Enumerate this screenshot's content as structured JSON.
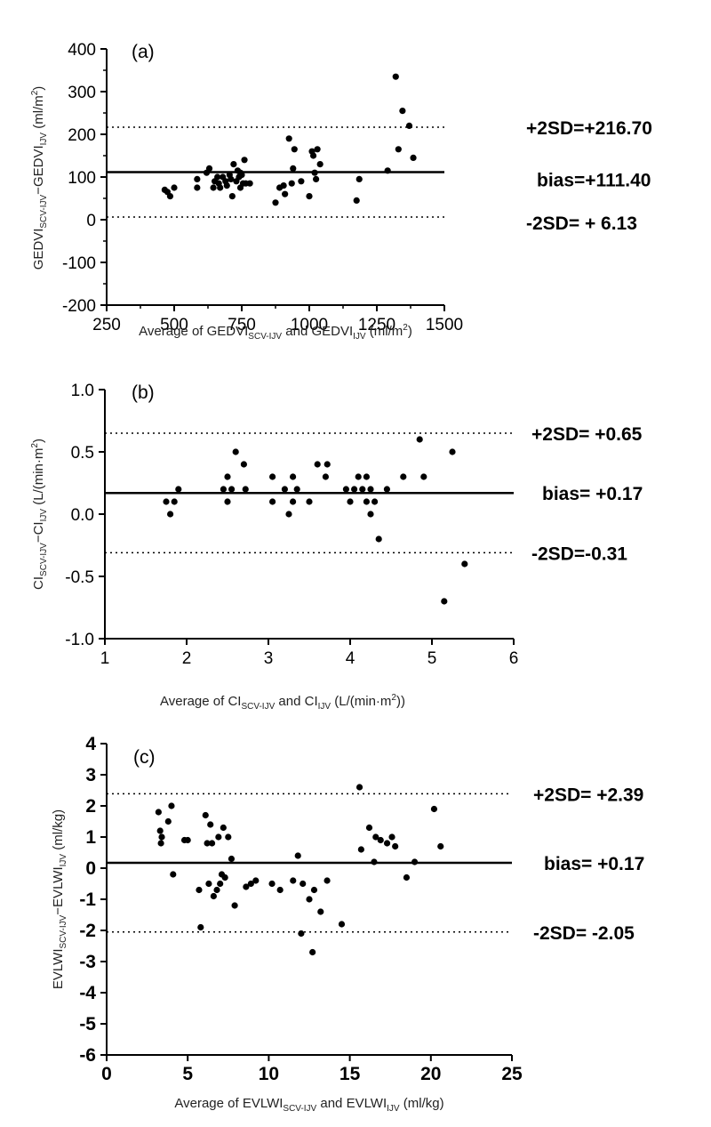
{
  "chart_data": [
    {
      "type": "scatter",
      "panel_label": "(a)",
      "xlabel": {
        "pre": "Average of GEDVI",
        "sub1": "SCV-IJV",
        "mid": " and GEDVI",
        "sub2": "IJV",
        "post": " (ml/m",
        "sup": "2",
        "end": ")"
      },
      "ylabel": {
        "pre": "GEDVI",
        "sub1": "SCV-IJV",
        "mid": "−GEDVI",
        "sub2": "IJV",
        "post": " (ml/m",
        "sup": "2",
        "end": ")"
      },
      "xlim": [
        250,
        1500
      ],
      "ylim": [
        -200,
        400
      ],
      "xticks": [
        250,
        500,
        750,
        1000,
        1250,
        1500
      ],
      "yticks": [
        -200,
        -100,
        0,
        100,
        200,
        300,
        400
      ],
      "lines": {
        "upper": {
          "value": 216.7,
          "label": "+2SD=+216.70"
        },
        "bias": {
          "value": 111.4,
          "label": "bias=+111.40"
        },
        "lower": {
          "value": 6.13,
          "label": "-2SD= + 6.13"
        }
      },
      "points": [
        [
          465,
          70
        ],
        [
          475,
          65
        ],
        [
          485,
          55
        ],
        [
          500,
          75
        ],
        [
          585,
          95
        ],
        [
          585,
          75
        ],
        [
          620,
          110
        ],
        [
          630,
          120
        ],
        [
          645,
          75
        ],
        [
          650,
          90
        ],
        [
          660,
          100
        ],
        [
          665,
          85
        ],
        [
          670,
          75
        ],
        [
          680,
          100
        ],
        [
          690,
          90
        ],
        [
          695,
          80
        ],
        [
          705,
          105
        ],
        [
          710,
          95
        ],
        [
          715,
          55
        ],
        [
          720,
          130
        ],
        [
          730,
          90
        ],
        [
          735,
          115
        ],
        [
          740,
          100
        ],
        [
          745,
          110
        ],
        [
          745,
          75
        ],
        [
          750,
          105
        ],
        [
          755,
          85
        ],
        [
          760,
          140
        ],
        [
          765,
          85
        ],
        [
          780,
          85
        ],
        [
          875,
          40
        ],
        [
          890,
          75
        ],
        [
          905,
          80
        ],
        [
          910,
          60
        ],
        [
          925,
          190
        ],
        [
          935,
          85
        ],
        [
          940,
          120
        ],
        [
          945,
          165
        ],
        [
          970,
          90
        ],
        [
          1000,
          55
        ],
        [
          1010,
          160
        ],
        [
          1015,
          150
        ],
        [
          1020,
          110
        ],
        [
          1025,
          95
        ],
        [
          1030,
          165
        ],
        [
          1040,
          130
        ],
        [
          1175,
          45
        ],
        [
          1185,
          95
        ],
        [
          1290,
          115
        ],
        [
          1320,
          335
        ],
        [
          1330,
          165
        ],
        [
          1345,
          255
        ],
        [
          1370,
          220
        ],
        [
          1385,
          145
        ]
      ]
    },
    {
      "type": "scatter",
      "panel_label": "(b)",
      "xlabel": {
        "pre": "Average of CI",
        "sub1": "SCV-IJV",
        "mid": " and CI",
        "sub2": "IJV",
        "post": " (L/(min·m",
        "sup": "2",
        "end": "))"
      },
      "ylabel": {
        "pre": "CI",
        "sub1": "SCV-IJV",
        "mid": "−CI",
        "sub2": "IJV",
        "post": " (L/(min·m",
        "sup": "2",
        "end": ")"
      },
      "xlim": [
        1,
        6
      ],
      "ylim": [
        -1.0,
        1.0
      ],
      "xticks": [
        1,
        2,
        3,
        4,
        5,
        6
      ],
      "yticks": [
        -1.0,
        -0.5,
        0.0,
        0.5,
        1.0
      ],
      "ytick_labels": [
        "-1.0",
        "-0.5",
        "0.0",
        "0.5",
        "1.0"
      ],
      "lines": {
        "upper": {
          "value": 0.65,
          "label": "+2SD= +0.65"
        },
        "bias": {
          "value": 0.17,
          "label": "bias= +0.17"
        },
        "lower": {
          "value": -0.31,
          "label": "-2SD=-0.31"
        }
      },
      "points": [
        [
          1.75,
          0.1
        ],
        [
          1.8,
          0.0
        ],
        [
          1.85,
          0.1
        ],
        [
          1.9,
          0.2
        ],
        [
          2.45,
          0.2
        ],
        [
          2.5,
          0.3
        ],
        [
          2.5,
          0.1
        ],
        [
          2.55,
          0.2
        ],
        [
          2.6,
          0.5
        ],
        [
          2.7,
          0.4
        ],
        [
          2.72,
          0.2
        ],
        [
          3.05,
          0.3
        ],
        [
          3.05,
          0.1
        ],
        [
          3.2,
          0.2
        ],
        [
          3.25,
          0.0
        ],
        [
          3.3,
          0.3
        ],
        [
          3.3,
          0.1
        ],
        [
          3.35,
          0.2
        ],
        [
          3.5,
          0.1
        ],
        [
          3.6,
          0.4
        ],
        [
          3.7,
          0.3
        ],
        [
          3.72,
          0.4
        ],
        [
          3.95,
          0.2
        ],
        [
          4.0,
          0.1
        ],
        [
          4.05,
          0.2
        ],
        [
          4.1,
          0.3
        ],
        [
          4.15,
          0.2
        ],
        [
          4.2,
          0.3
        ],
        [
          4.2,
          0.1
        ],
        [
          4.25,
          0.2
        ],
        [
          4.25,
          0.0
        ],
        [
          4.3,
          0.1
        ],
        [
          4.35,
          -0.2
        ],
        [
          4.45,
          0.2
        ],
        [
          4.65,
          0.3
        ],
        [
          4.85,
          0.6
        ],
        [
          4.9,
          0.3
        ],
        [
          5.15,
          -0.7
        ],
        [
          5.25,
          0.5
        ],
        [
          5.4,
          -0.4
        ]
      ]
    },
    {
      "type": "scatter",
      "panel_label": "(c)",
      "xlabel": {
        "pre": "Average of EVLWI",
        "sub1": "SCV-IJV",
        "mid": " and EVLWI",
        "sub2": "IJV",
        "post": " (ml/kg)",
        "sup": "",
        "end": ""
      },
      "ylabel": {
        "pre": "EVLWI",
        "sub1": "SCV-IJV",
        "mid": "−EVLWI",
        "sub2": "IJV",
        "post": " (ml/kg)",
        "sup": "",
        "end": ""
      },
      "xlim": [
        0,
        25
      ],
      "ylim": [
        -6,
        4
      ],
      "xticks": [
        0,
        5,
        10,
        15,
        20,
        25
      ],
      "yticks": [
        -6,
        -5,
        -4,
        -3,
        -2,
        -1,
        0,
        1,
        2,
        3,
        4
      ],
      "lines": {
        "upper": {
          "value": 2.39,
          "label": "+2SD= +2.39"
        },
        "bias": {
          "value": 0.17,
          "label": "bias= +0.17"
        },
        "lower": {
          "value": -2.05,
          "label": "-2SD= -2.05"
        }
      },
      "points": [
        [
          3.2,
          1.8
        ],
        [
          3.3,
          1.2
        ],
        [
          3.35,
          0.8
        ],
        [
          3.4,
          1.0
        ],
        [
          3.8,
          1.5
        ],
        [
          4.0,
          2.0
        ],
        [
          4.1,
          -0.2
        ],
        [
          4.8,
          0.9
        ],
        [
          5.0,
          0.9
        ],
        [
          5.7,
          -0.7
        ],
        [
          5.8,
          -1.9
        ],
        [
          6.1,
          1.7
        ],
        [
          6.2,
          0.8
        ],
        [
          6.3,
          -0.5
        ],
        [
          6.4,
          1.4
        ],
        [
          6.5,
          0.8
        ],
        [
          6.6,
          -0.9
        ],
        [
          6.8,
          -0.7
        ],
        [
          6.9,
          1.0
        ],
        [
          7.0,
          -0.5
        ],
        [
          7.1,
          -0.2
        ],
        [
          7.2,
          1.3
        ],
        [
          7.3,
          -0.3
        ],
        [
          7.5,
          1.0
        ],
        [
          7.7,
          0.3
        ],
        [
          7.9,
          -1.2
        ],
        [
          8.6,
          -0.6
        ],
        [
          8.9,
          -0.5
        ],
        [
          9.2,
          -0.4
        ],
        [
          10.2,
          -0.5
        ],
        [
          10.7,
          -0.7
        ],
        [
          11.5,
          -0.4
        ],
        [
          11.8,
          0.4
        ],
        [
          12.0,
          -2.1
        ],
        [
          12.1,
          -0.5
        ],
        [
          12.5,
          -1.0
        ],
        [
          12.7,
          -2.7
        ],
        [
          12.8,
          -0.7
        ],
        [
          13.2,
          -1.4
        ],
        [
          13.6,
          -0.4
        ],
        [
          14.5,
          -1.8
        ],
        [
          15.6,
          2.6
        ],
        [
          15.7,
          0.6
        ],
        [
          16.2,
          1.3
        ],
        [
          16.5,
          0.2
        ],
        [
          16.6,
          1.0
        ],
        [
          16.9,
          0.9
        ],
        [
          17.3,
          0.8
        ],
        [
          17.6,
          1.0
        ],
        [
          17.8,
          0.7
        ],
        [
          18.5,
          -0.3
        ],
        [
          19.0,
          0.2
        ],
        [
          20.2,
          1.9
        ],
        [
          20.6,
          0.7
        ]
      ]
    }
  ]
}
